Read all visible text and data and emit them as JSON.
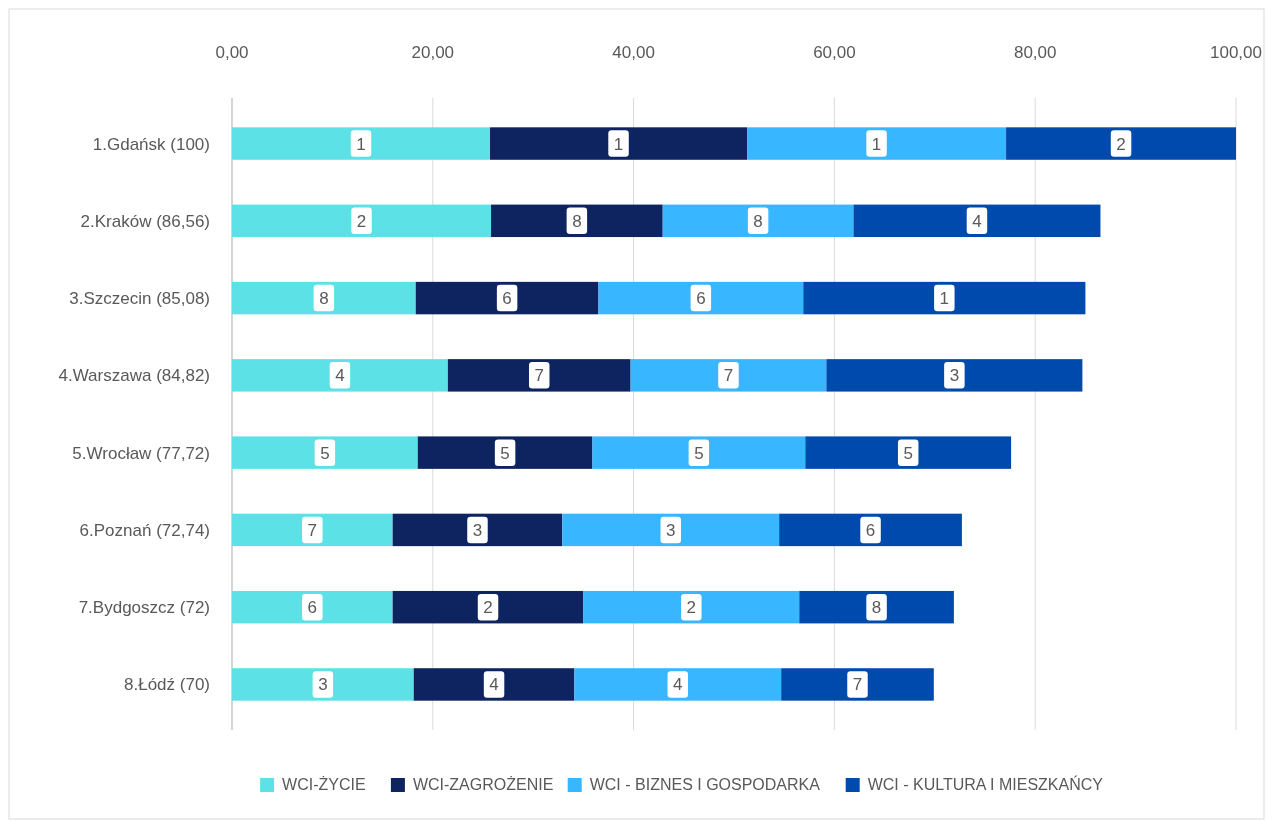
{
  "chart_data": {
    "type": "bar",
    "orientation": "horizontal",
    "stacked": true,
    "categories": [
      "1.Gdańsk (100)",
      "2.Kraków (86,56)",
      "3.Szczecin (85,08)",
      "4.Warszawa (84,82)",
      "5.Wrocław (77,72)",
      "6.Poznań (72,74)",
      "7.Bydgoszcz (72)",
      "8.Łódź (70)"
    ],
    "series": [
      {
        "name": "WCI-ŻYCIE",
        "color": "#5ce1e6",
        "values": [
          25.7,
          25.8,
          18.3,
          21.5,
          18.5,
          16.0,
          16.0,
          18.1
        ]
      },
      {
        "name": "WCI-ZAGROŻENIE",
        "color": "#0d2461",
        "values": [
          25.6,
          17.1,
          18.2,
          18.2,
          17.4,
          16.9,
          19.0,
          16.0
        ]
      },
      {
        "name": "WCI - BIZNES I GOSPODARKA",
        "color": "#38b6ff",
        "values": [
          25.8,
          19.0,
          20.4,
          19.5,
          21.2,
          21.6,
          21.5,
          20.6
        ]
      },
      {
        "name": "WCI - KULTURA I MIESZKAŃCY",
        "color": "#004aad",
        "values": [
          22.9,
          24.6,
          28.1,
          25.5,
          20.5,
          18.2,
          15.4,
          15.2
        ]
      }
    ],
    "annotations": [
      {
        "text": "1",
        "x": 12.85,
        "y": "1.Gdańsk (100)"
      },
      {
        "text": "1",
        "x": 38.5,
        "y": "1.Gdańsk (100)"
      },
      {
        "text": "1",
        "x": 64.2,
        "y": "1.Gdańsk (100)"
      },
      {
        "text": "2",
        "x": 88.55,
        "y": "1.Gdańsk (100)"
      },
      {
        "text": "2",
        "x": 12.9,
        "y": "2.Kraków (86,56)"
      },
      {
        "text": "8",
        "x": 34.35,
        "y": "2.Kraków (86,56)"
      },
      {
        "text": "8",
        "x": 52.4,
        "y": "2.Kraków (86,56)"
      },
      {
        "text": "4",
        "x": 74.2,
        "y": "2.Kraków (86,56)"
      },
      {
        "text": "8",
        "x": 9.15,
        "y": "3.Szczecin (85,08)"
      },
      {
        "text": "6",
        "x": 27.4,
        "y": "3.Szczecin (85,08)"
      },
      {
        "text": "6",
        "x": 46.7,
        "y": "3.Szczecin (85,08)"
      },
      {
        "text": "1",
        "x": 70.95,
        "y": "3.Szczecin (85,08)"
      },
      {
        "text": "4",
        "x": 10.75,
        "y": "4.Warszawa (84,82)"
      },
      {
        "text": "7",
        "x": 30.6,
        "y": "4.Warszawa (84,82)"
      },
      {
        "text": "7",
        "x": 49.45,
        "y": "4.Warszawa (84,82)"
      },
      {
        "text": "3",
        "x": 71.95,
        "y": "4.Warszawa (84,82)"
      },
      {
        "text": "5",
        "x": 9.25,
        "y": "5.Wrocław (77,72)"
      },
      {
        "text": "5",
        "x": 27.2,
        "y": "5.Wrocław (77,72)"
      },
      {
        "text": "5",
        "x": 46.5,
        "y": "5.Wrocław (77,72)"
      },
      {
        "text": "5",
        "x": 67.35,
        "y": "5.Wrocław (77,72)"
      },
      {
        "text": "7",
        "x": 8.0,
        "y": "6.Poznań (72,74)"
      },
      {
        "text": "3",
        "x": 24.45,
        "y": "6.Poznań (72,74)"
      },
      {
        "text": "3",
        "x": 43.7,
        "y": "6.Poznań (72,74)"
      },
      {
        "text": "6",
        "x": 63.6,
        "y": "6.Poznań (72,74)"
      },
      {
        "text": "6",
        "x": 8.0,
        "y": "7.Bydgoszcz (72)"
      },
      {
        "text": "2",
        "x": 25.5,
        "y": "7.Bydgoszcz (72)"
      },
      {
        "text": "2",
        "x": 45.75,
        "y": "7.Bydgoszcz (72)"
      },
      {
        "text": "8",
        "x": 64.2,
        "y": "7.Bydgoszcz (72)"
      },
      {
        "text": "3",
        "x": 9.05,
        "y": "8.Łódź (70)"
      },
      {
        "text": "4",
        "x": 26.1,
        "y": "8.Łódź (70)"
      },
      {
        "text": "4",
        "x": 44.4,
        "y": "8.Łódź (70)"
      },
      {
        "text": "7",
        "x": 62.3,
        "y": "8.Łódź (70)"
      }
    ],
    "xlim": [
      0,
      100
    ],
    "xticks": [
      {
        "value": 0,
        "label": "0,00"
      },
      {
        "value": 20,
        "label": "20,00"
      },
      {
        "value": 40,
        "label": "40,00"
      },
      {
        "value": 60,
        "label": "60,00"
      },
      {
        "value": 80,
        "label": "80,00"
      },
      {
        "value": 100,
        "label": "100,00"
      }
    ],
    "grid": "x",
    "legend": "bottom"
  }
}
